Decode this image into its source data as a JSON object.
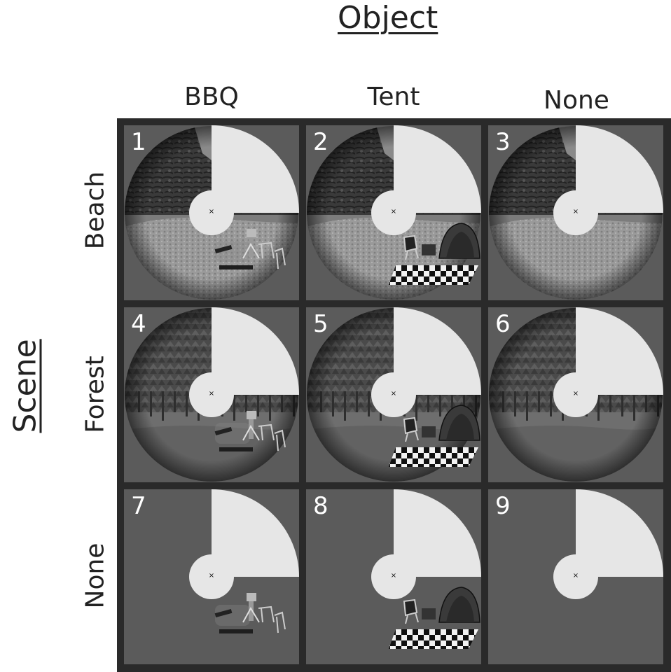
{
  "object_axis": {
    "title": "Object",
    "columns": [
      "BBQ",
      "Tent",
      "None"
    ]
  },
  "scene_axis": {
    "title": "Scene",
    "rows": [
      "Beach",
      "Forest",
      "None"
    ]
  },
  "cells": [
    {
      "number": "1",
      "scene": "beach",
      "object": "bbq"
    },
    {
      "number": "2",
      "scene": "beach",
      "object": "tent"
    },
    {
      "number": "3",
      "scene": "beach",
      "object": "none"
    },
    {
      "number": "4",
      "scene": "forest",
      "object": "bbq"
    },
    {
      "number": "5",
      "scene": "forest",
      "object": "tent"
    },
    {
      "number": "6",
      "scene": "forest",
      "object": "none"
    },
    {
      "number": "7",
      "scene": "none",
      "object": "bbq"
    },
    {
      "number": "8",
      "scene": "none",
      "object": "tent"
    },
    {
      "number": "9",
      "scene": "none",
      "object": "none"
    }
  ],
  "fixation_mark": "×",
  "colors": {
    "grid_border": "#2a2a2a",
    "cell_background": "#5b5b5b",
    "quadrant_mask": "#e6e6e6",
    "sand": "#9a9a9a",
    "rock": "#3a3a3a",
    "forest": "#4a4a4a",
    "ground": "#6e6e6e"
  }
}
